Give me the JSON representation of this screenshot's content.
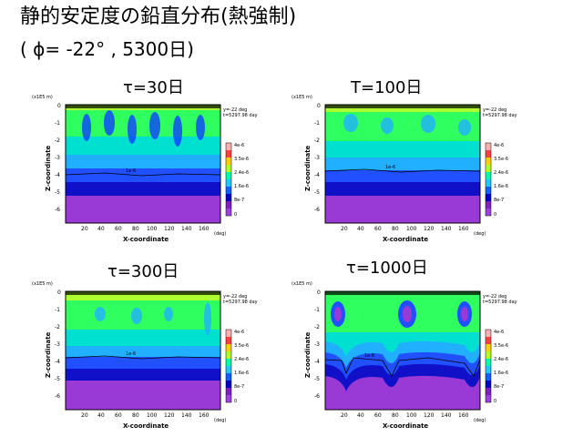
{
  "title": "静的安定度の鉛直分布(熱強制)",
  "subtitle": "( ϕ= -22° , 5300日)",
  "panels": [
    {
      "label": "τ=30日"
    },
    {
      "label": "T=100日"
    },
    {
      "label": "τ=300日"
    },
    {
      "label": "τ=1000日"
    }
  ],
  "axes": {
    "ylabel": "Z-coordinate",
    "xlabel": "X-coordinate",
    "yunit": "(x1E5 m)",
    "xunit": "(deg)",
    "yticks": [
      "0",
      "-1",
      "-2",
      "-3",
      "-4",
      "-5",
      "-6"
    ],
    "xticks": [
      "20",
      "40",
      "60",
      "80",
      "100",
      "120",
      "140",
      "160"
    ]
  },
  "info": {
    "line1": "y=-22 deg",
    "line2": "t=5297.98 day"
  },
  "colorbar": {
    "ticks": [
      "4e-6",
      "3.5e-6",
      "2.4e-6",
      "1.6e-6",
      "8e-7",
      "0"
    ],
    "colors": [
      "#ffb0b0",
      "#ff4040",
      "#ffd000",
      "#b0ff20",
      "#00ffaa",
      "#20c8ff",
      "#1060ff",
      "#0000c8",
      "#8020c0",
      "#a040e0"
    ]
  },
  "contour_labels": {
    "mid": "1e-6"
  },
  "palette": {
    "deep": "#9a3ad6",
    "blue_dark": "#1010c8",
    "blue": "#2050ff",
    "cyan": "#20b0ff",
    "aqua": "#00e0d0",
    "green": "#30ff60",
    "lime": "#b0ff30",
    "spot": "#1040ff"
  }
}
